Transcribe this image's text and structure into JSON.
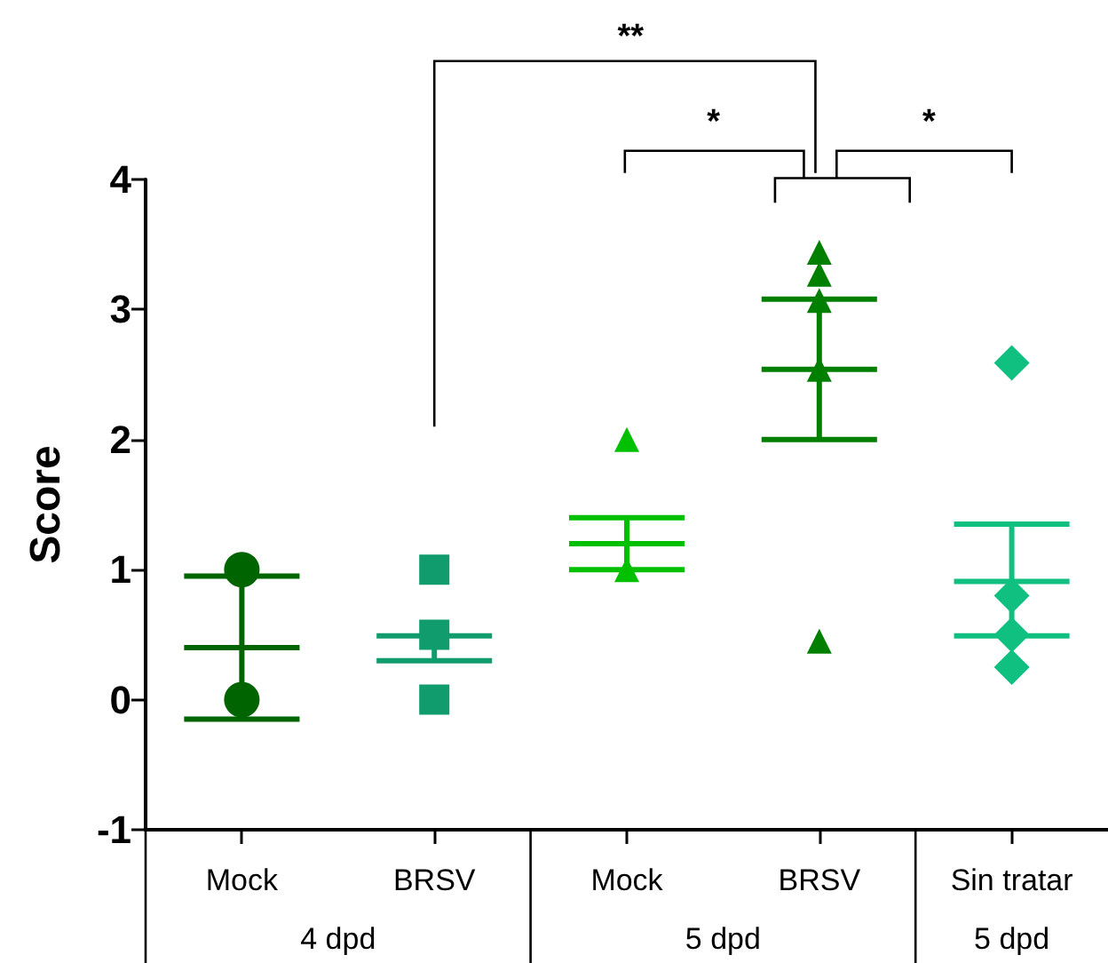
{
  "chart_data": {
    "type": "scatter",
    "ylabel": "Score",
    "ylim": [
      -1,
      4
    ],
    "yticks": [
      -1,
      0,
      1,
      2,
      3,
      4
    ],
    "categories": [
      "Mock",
      "BRSV",
      "Mock",
      "BRSV",
      "Sin tratar"
    ],
    "grid": false,
    "series": [
      {
        "type": "scatter",
        "marker": "circle",
        "color": "#006400",
        "values": [
          1,
          null,
          null,
          null,
          null
        ]
      },
      {
        "type": "scatter",
        "marker": "circle",
        "color": "#006400",
        "values": [
          0,
          null,
          null,
          null,
          null
        ]
      },
      {
        "type": "scatter",
        "marker": "square",
        "color": "#109c6c",
        "values": [
          null,
          1,
          null,
          null,
          null
        ]
      },
      {
        "type": "scatter",
        "marker": "square",
        "color": "#109c6c",
        "values": [
          null,
          0.5,
          null,
          null,
          null
        ]
      },
      {
        "type": "scatter",
        "marker": "square",
        "color": "#109c6c",
        "values": [
          null,
          0,
          null,
          null,
          null
        ]
      },
      {
        "type": "scatter",
        "marker": "triangle",
        "color": "#00c000",
        "values": [
          null,
          null,
          2,
          null,
          null
        ]
      },
      {
        "type": "scatter",
        "marker": "triangle",
        "color": "#00c000",
        "values": [
          null,
          null,
          1,
          null,
          null
        ]
      },
      {
        "type": "scatter",
        "marker": "triangle",
        "color": "#007f00",
        "values": [
          null,
          null,
          null,
          3.44,
          null
        ]
      },
      {
        "type": "scatter",
        "marker": "triangle",
        "color": "#007f00",
        "values": [
          null,
          null,
          null,
          3.27,
          null
        ]
      },
      {
        "type": "scatter",
        "marker": "triangle",
        "color": "#007f00",
        "values": [
          null,
          null,
          null,
          3.07,
          null
        ]
      },
      {
        "type": "scatter",
        "marker": "triangle",
        "color": "#007f00",
        "values": [
          null,
          null,
          null,
          2.54,
          null
        ]
      },
      {
        "type": "scatter",
        "marker": "triangle",
        "color": "#007f00",
        "values": [
          null,
          null,
          null,
          0.45,
          null
        ]
      },
      {
        "type": "scatter",
        "marker": "diamond",
        "color": "#10c080",
        "values": [
          null,
          null,
          null,
          null,
          2.59
        ]
      },
      {
        "type": "scatter",
        "marker": "diamond",
        "color": "#10c080",
        "values": [
          null,
          null,
          null,
          null,
          0.8
        ]
      },
      {
        "type": "scatter",
        "marker": "diamond",
        "color": "#10c080",
        "values": [
          null,
          null,
          null,
          null,
          0.5
        ]
      },
      {
        "type": "scatter",
        "marker": "diamond",
        "color": "#10c080",
        "values": [
          null,
          null,
          null,
          null,
          0.25
        ]
      },
      {
        "type": "box",
        "colors": [
          "#006400",
          "#109c6c",
          "#00c000",
          "#007f00",
          "#10c080"
        ],
        "boxes": [
          {
            "low": -0.15,
            "q1": 0.4,
            "median": 0.4,
            "q3": 0.4,
            "high": 0.95
          },
          {
            "low": 0.3,
            "q1": 0.3,
            "median": 0.3,
            "q3": 0.3,
            "high": 0.49
          },
          {
            "low": 1.0,
            "q1": 1.2,
            "median": 1.2,
            "q3": 1.2,
            "high": 1.4
          },
          {
            "low": 2.0,
            "q1": 2.54,
            "median": 2.54,
            "q3": 2.54,
            "high": 3.08
          },
          {
            "low": 0.49,
            "q1": 0.91,
            "median": 0.91,
            "q3": 0.91,
            "high": 1.35
          }
        ]
      }
    ],
    "annotations": [
      "**",
      "*",
      "*",
      "4 dpd",
      "5 dpd",
      "5 dpd"
    ]
  }
}
